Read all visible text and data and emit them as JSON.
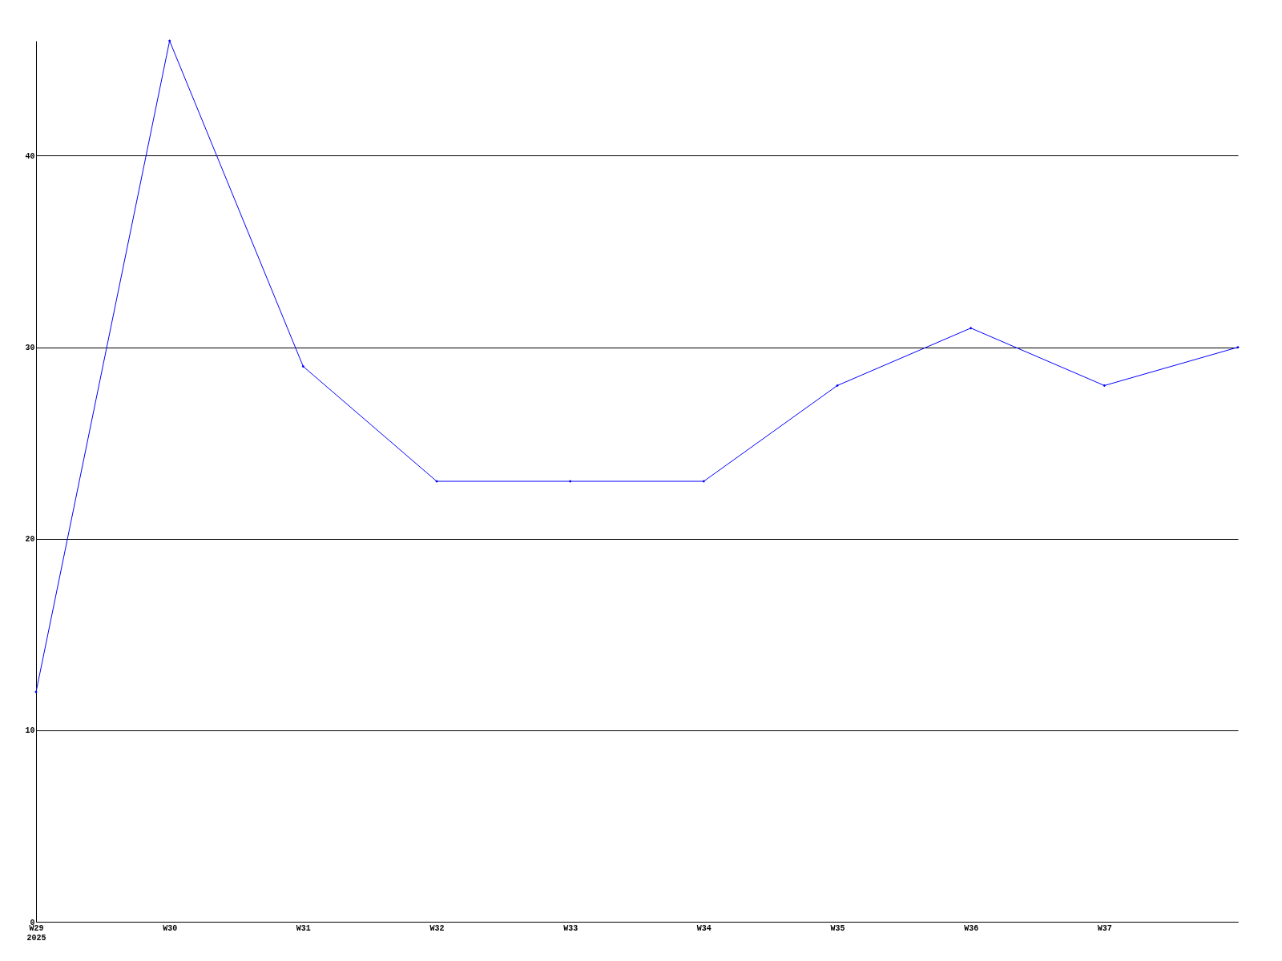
{
  "chart_data": {
    "type": "line",
    "categories": [
      "W29\n2025",
      "W30",
      "W31",
      "W32",
      "W33",
      "W34",
      "W35",
      "W36",
      "W37",
      null
    ],
    "series": [
      {
        "color": "#0000ff",
        "values": [
          12,
          46,
          29,
          23,
          23,
          23,
          28,
          31,
          28,
          30
        ]
      }
    ],
    "ylim": [
      0,
      46
    ],
    "yticks": [
      0,
      10,
      20,
      30,
      40
    ],
    "grid": "y",
    "marker": "diamond",
    "line_style": "solid"
  }
}
